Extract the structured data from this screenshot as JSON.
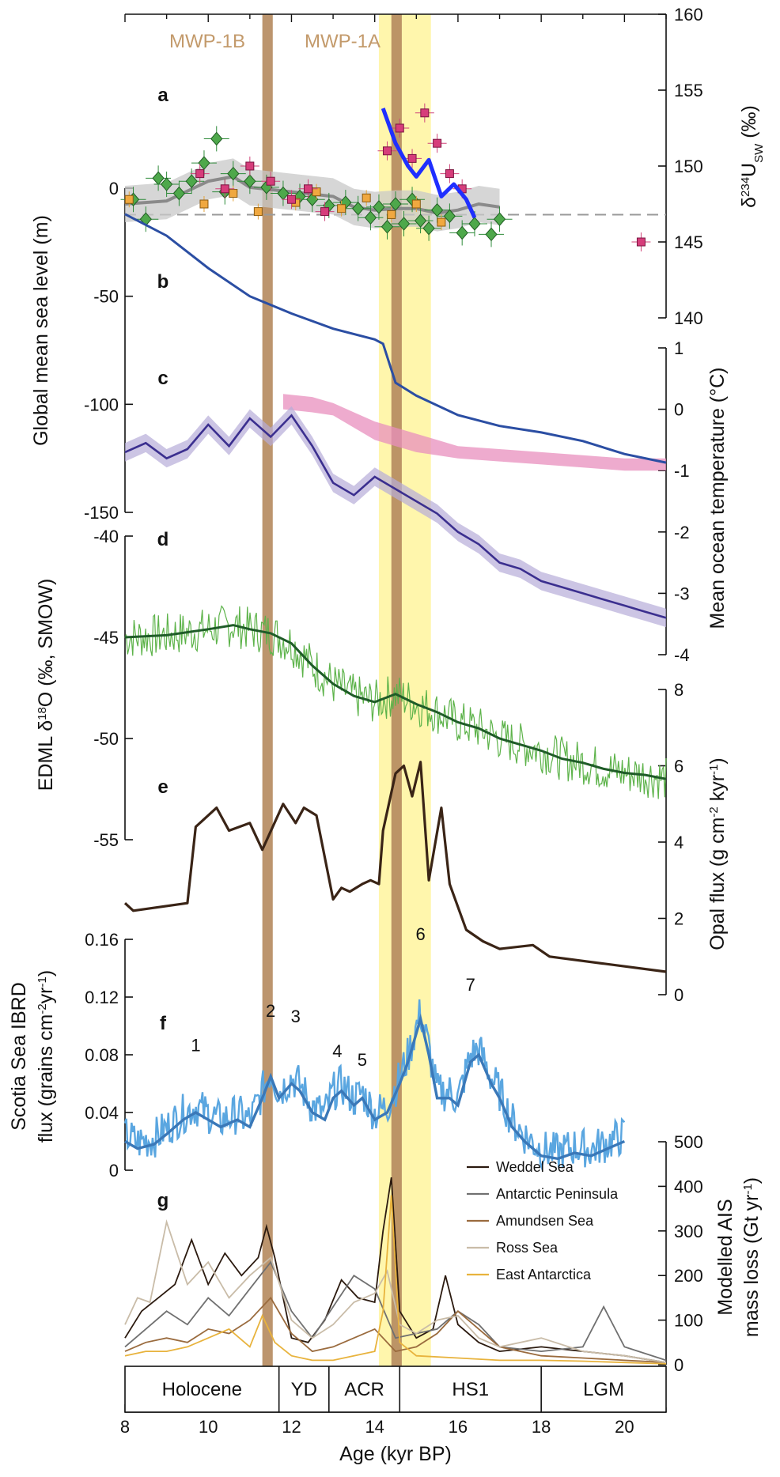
{
  "chart_data": {
    "type": "line",
    "x_axis": {
      "label": "Age (kyr BP)",
      "range": [
        8,
        21
      ],
      "ticks": [
        8,
        10,
        12,
        14,
        16,
        18,
        20
      ]
    },
    "highlights": {
      "mwp_1a_yellow": {
        "x": [
          14.1,
          15.35
        ]
      },
      "brown_bars": [
        {
          "x": [
            11.3,
            11.55
          ]
        },
        {
          "x": [
            14.4,
            14.65
          ]
        }
      ],
      "event_labels": [
        "MWP-1B",
        "MWP-1A"
      ]
    },
    "stages": [
      {
        "label": "Holocene",
        "x": [
          8,
          11.7
        ]
      },
      {
        "label": "YD",
        "x": [
          11.7,
          12.9
        ]
      },
      {
        "label": "ACR",
        "x": [
          12.9,
          14.6
        ]
      },
      {
        "label": "HS1",
        "x": [
          14.6,
          18
        ]
      },
      {
        "label": "LGM",
        "x": [
          18,
          21
        ]
      }
    ],
    "panels": {
      "a": {
        "panel_label": "a",
        "ylabel": "δ234USW (‰)",
        "ylim": [
          140,
          160
        ],
        "yticks": [
          140,
          145,
          150,
          155,
          160
        ],
        "reference_line": 146.8,
        "mean": {
          "x": [
            8,
            9,
            10,
            10.6,
            11,
            12,
            13,
            13.5,
            14,
            14.5,
            15,
            15.5,
            16,
            16.5,
            17
          ],
          "y": [
            147.5,
            147.7,
            149.0,
            149.3,
            148.6,
            148.3,
            148.0,
            147.3,
            147.1,
            147.2,
            147.2,
            146.9,
            147.1,
            147.5,
            147.3
          ]
        },
        "mean_band_halfwidth": 1.2,
        "pink_trend": {
          "x": [
            14.2,
            14.5,
            14.8,
            15.0,
            15.3,
            15.6,
            15.9,
            16.2,
            16.4
          ],
          "y": [
            153.8,
            151.5,
            150.0,
            149.3,
            150.4,
            148.0,
            148.8,
            147.8,
            146.6
          ]
        },
        "green_points": {
          "x": [
            8.2,
            8.5,
            8.8,
            9.0,
            9.3,
            9.6,
            9.9,
            10.2,
            10.4,
            10.6,
            11.0,
            11.4,
            11.8,
            12.2,
            12.5,
            12.9,
            13.3,
            13.6,
            13.9,
            14.1,
            14.3,
            14.5,
            14.7,
            14.9,
            15.1,
            15.3,
            15.5,
            15.8,
            16.1,
            16.4,
            16.8,
            17.0
          ],
          "y": [
            147.8,
            146.5,
            149.2,
            148.8,
            148.2,
            149.0,
            150.2,
            151.8,
            148.3,
            149.5,
            149.0,
            148.6,
            148.2,
            148.0,
            147.8,
            147.4,
            147.6,
            147.2,
            146.6,
            147.3,
            146.0,
            147.5,
            146.2,
            147.8,
            146.4,
            145.9,
            147.1,
            146.7,
            145.6,
            146.2,
            145.5,
            146.5
          ]
        },
        "pink_points": {
          "x": [
            9.8,
            10.4,
            11.0,
            11.5,
            12.0,
            12.4,
            12.8,
            14.3,
            14.6,
            14.9,
            15.2,
            15.5,
            15.8,
            16.1,
            20.4
          ],
          "y": [
            149.5,
            148.5,
            150.0,
            149.0,
            147.8,
            148.5,
            147.0,
            151.0,
            152.5,
            150.5,
            153.5,
            151.5,
            149.5,
            148.5,
            145.0
          ]
        },
        "orange_points": {
          "x": [
            8.1,
            9.9,
            10.6,
            11.2,
            12.1,
            12.6,
            13.2,
            13.8,
            14.4,
            15.0,
            15.6
          ],
          "y": [
            147.8,
            147.5,
            148.2,
            147.0,
            147.6,
            148.3,
            147.2,
            147.9,
            146.8,
            147.5,
            146.3
          ]
        }
      },
      "b": {
        "panel_label": "b",
        "ylabel": "Global mean sea level (m)",
        "ylim": [
          -150,
          0
        ],
        "yticks": [
          -150,
          -100,
          -50,
          0
        ],
        "x": [
          8,
          9,
          10,
          11,
          12,
          13,
          14,
          14.2,
          14.5,
          15,
          16,
          17,
          18,
          19,
          20,
          21
        ],
        "y": [
          -12,
          -22,
          -37,
          -50,
          -58,
          -65,
          -70,
          -72,
          -90,
          -96,
          -105,
          -110,
          -113,
          -117,
          -123,
          -127
        ]
      },
      "c": {
        "panel_label": "c",
        "ylabel": "Mean ocean temperature (°C)",
        "ylim": [
          -4,
          1
        ],
        "yticks": [
          -4,
          -3,
          -2,
          -1,
          0,
          1
        ],
        "x": [
          8,
          8.5,
          9,
          9.5,
          10,
          10.5,
          11,
          11.5,
          12,
          12.5,
          13,
          13.5,
          14,
          14.5,
          15,
          15.5,
          16,
          16.5,
          17,
          17.5,
          18,
          18.5,
          19,
          19.5,
          20,
          20.5,
          21
        ],
        "y": [
          -0.7,
          -0.55,
          -0.8,
          -0.65,
          -0.25,
          -0.6,
          -0.15,
          -0.45,
          -0.1,
          -0.6,
          -1.2,
          -1.4,
          -1.1,
          -1.3,
          -1.5,
          -1.7,
          -2.0,
          -2.2,
          -2.5,
          -2.6,
          -2.8,
          -2.9,
          -3.0,
          -3.1,
          -3.2,
          -3.3,
          -3.4
        ],
        "band_halfwidth": 0.15,
        "pink_band": {
          "x": [
            11.8,
            12.5,
            13.0,
            13.5,
            14.0,
            14.5,
            15.0,
            15.5,
            16.0,
            17.0,
            18.0,
            19.0,
            20.0,
            21.0
          ],
          "lo": [
            0.0,
            -0.05,
            -0.1,
            -0.3,
            -0.5,
            -0.6,
            -0.7,
            -0.75,
            -0.8,
            -0.85,
            -0.9,
            -0.95,
            -1.0,
            -1.0
          ],
          "hi": [
            0.25,
            0.2,
            0.1,
            -0.05,
            -0.2,
            -0.3,
            -0.4,
            -0.5,
            -0.6,
            -0.65,
            -0.7,
            -0.75,
            -0.8,
            -0.8
          ]
        }
      },
      "d": {
        "panel_label": "d",
        "ylabel": "EDML δ18O (‰, SMOW)",
        "ylim": [
          -55,
          -40
        ],
        "yticks": [
          -55,
          -50,
          -45,
          -40
        ],
        "x": [
          8,
          9,
          10,
          10.6,
          11,
          11.5,
          12,
          12.5,
          13,
          13.5,
          14,
          14.5,
          15,
          15.5,
          16,
          16.5,
          17,
          17.5,
          18,
          18.5,
          19,
          19.5,
          20,
          20.5,
          21
        ],
        "y": [
          -45.0,
          -44.9,
          -44.6,
          -44.4,
          -44.6,
          -44.8,
          -45.3,
          -46.4,
          -47.3,
          -47.9,
          -48.2,
          -47.8,
          -48.3,
          -48.7,
          -49.2,
          -49.5,
          -50.0,
          -50.3,
          -50.6,
          -51.0,
          -51.2,
          -51.5,
          -51.7,
          -51.8,
          -52.0
        ]
      },
      "e": {
        "panel_label": "e",
        "ylabel": "Opal flux (g cm-2 kyr-1)",
        "ylim": [
          0,
          8
        ],
        "yticks": [
          0,
          2,
          4,
          6,
          8
        ],
        "x": [
          8,
          8.2,
          9.5,
          9.7,
          10.2,
          10.5,
          11.0,
          11.3,
          11.8,
          12.1,
          12.3,
          12.6,
          13.0,
          13.2,
          13.4,
          13.7,
          13.9,
          14.1,
          14.2,
          14.5,
          14.7,
          14.9,
          15.1,
          15.3,
          15.6,
          15.8,
          16.2,
          16.6,
          17.0,
          17.8,
          18.2,
          21.0
        ],
        "y": [
          2.4,
          2.2,
          2.4,
          4.4,
          4.9,
          4.3,
          4.5,
          3.8,
          5.0,
          4.5,
          4.9,
          4.7,
          2.5,
          2.8,
          2.7,
          2.9,
          3.0,
          2.9,
          4.3,
          5.8,
          6.0,
          5.2,
          6.1,
          3.0,
          4.9,
          2.9,
          1.7,
          1.4,
          1.2,
          1.3,
          1.0,
          0.6
        ]
      },
      "f": {
        "panel_label": "f",
        "ylabel": "Scotia Sea IBRD flux (grains cm-2yr-1)",
        "ylim": [
          0,
          0.16
        ],
        "yticks": [
          0,
          0.04,
          0.08,
          0.12,
          0.16
        ],
        "peak_labels": [
          {
            "label": "1",
            "x": 9.7,
            "y": 0.078
          },
          {
            "label": "2",
            "x": 11.5,
            "y": 0.102
          },
          {
            "label": "3",
            "x": 12.1,
            "y": 0.098
          },
          {
            "label": "4",
            "x": 13.1,
            "y": 0.074
          },
          {
            "label": "5",
            "x": 13.7,
            "y": 0.068
          },
          {
            "label": "6",
            "x": 15.1,
            "y": 0.155
          },
          {
            "label": "7",
            "x": 16.3,
            "y": 0.12
          }
        ],
        "x": [
          8,
          8.3,
          8.7,
          9.0,
          9.4,
          9.7,
          10.0,
          10.3,
          10.7,
          11.0,
          11.3,
          11.5,
          11.7,
          12.0,
          12.2,
          12.5,
          12.8,
          13.0,
          13.2,
          13.5,
          13.7,
          14.0,
          14.3,
          14.6,
          14.8,
          15.0,
          15.1,
          15.3,
          15.5,
          15.8,
          16.0,
          16.3,
          16.5,
          16.8,
          17.0,
          17.3,
          17.6,
          18.0,
          18.4,
          18.8,
          19.2,
          19.6,
          20.0
        ],
        "y": [
          0.02,
          0.015,
          0.018,
          0.025,
          0.035,
          0.04,
          0.035,
          0.03,
          0.035,
          0.03,
          0.05,
          0.065,
          0.05,
          0.06,
          0.055,
          0.04,
          0.035,
          0.05,
          0.055,
          0.045,
          0.05,
          0.035,
          0.04,
          0.06,
          0.075,
          0.095,
          0.105,
          0.08,
          0.05,
          0.05,
          0.045,
          0.075,
          0.08,
          0.06,
          0.05,
          0.03,
          0.02,
          0.01,
          0.008,
          0.012,
          0.01,
          0.015,
          0.02
        ]
      },
      "g": {
        "panel_label": "g",
        "ylabel": "Modelled AIS mass loss (Gt yr-1)",
        "ylim": [
          0,
          500
        ],
        "yticks": [
          0,
          100,
          200,
          300,
          400,
          500
        ],
        "series": [
          {
            "name": "Weddel Sea",
            "color": "#2b1a0f",
            "x": [
              8,
              8.4,
              8.8,
              9.2,
              9.6,
              10.0,
              10.4,
              10.8,
              11.2,
              11.4,
              11.6,
              12.0,
              12.4,
              12.8,
              13.2,
              13.6,
              14.0,
              14.2,
              14.4,
              14.6,
              15.0,
              15.4,
              15.7,
              16.0,
              16.5,
              17.0,
              18.0,
              19.0,
              20.0,
              21.0
            ],
            "y": [
              60,
              120,
              150,
              180,
              280,
              180,
              250,
              200,
              240,
              310,
              240,
              60,
              50,
              100,
              190,
              150,
              140,
              300,
              420,
              120,
              60,
              80,
              200,
              90,
              50,
              30,
              40,
              30,
              20,
              5
            ]
          },
          {
            "name": "Antarctic Peninsula",
            "color": "#707070",
            "x": [
              8,
              8.5,
              9,
              9.5,
              10,
              10.5,
              11,
              11.5,
              12,
              12.5,
              13,
              13.5,
              14,
              14.5,
              15,
              15.5,
              16,
              16.5,
              17,
              18,
              19,
              19.5,
              20,
              21
            ],
            "y": [
              40,
              80,
              120,
              90,
              150,
              110,
              170,
              230,
              120,
              60,
              130,
              200,
              170,
              60,
              70,
              80,
              120,
              90,
              40,
              30,
              40,
              130,
              40,
              10
            ]
          },
          {
            "name": "Amundsen Sea",
            "color": "#9a6b3e",
            "x": [
              8,
              8.5,
              9,
              9.5,
              10,
              10.5,
              11,
              11.5,
              12,
              12.5,
              13,
              13.5,
              14,
              14.5,
              15,
              15.5,
              16,
              16.5,
              17,
              18,
              19,
              20,
              21
            ],
            "y": [
              30,
              50,
              60,
              50,
              80,
              70,
              100,
              150,
              70,
              30,
              40,
              60,
              80,
              30,
              40,
              70,
              120,
              80,
              40,
              20,
              15,
              10,
              5
            ]
          },
          {
            "name": "Ross Sea",
            "color": "#c9bca8",
            "x": [
              8,
              8.3,
              8.6,
              9,
              9.5,
              10,
              10.5,
              11,
              11.5,
              12,
              12.5,
              13,
              13.5,
              14,
              14.3,
              14.6,
              15,
              15.5,
              16,
              16.5,
              17,
              18,
              19,
              20,
              21
            ],
            "y": [
              90,
              150,
              140,
              320,
              180,
              230,
              150,
              200,
              240,
              100,
              60,
              90,
              140,
              160,
              210,
              90,
              70,
              100,
              110,
              60,
              40,
              60,
              30,
              20,
              5
            ]
          },
          {
            "name": "East Antarctica",
            "color": "#e8b33d",
            "x": [
              8,
              8.5,
              9,
              9.5,
              10,
              10.5,
              11,
              11.3,
              11.6,
              12,
              12.5,
              13,
              13.5,
              14,
              14.2,
              14.4,
              14.6,
              15,
              16,
              17,
              18,
              19,
              20,
              21
            ],
            "y": [
              20,
              30,
              30,
              40,
              60,
              80,
              40,
              110,
              50,
              20,
              10,
              10,
              20,
              30,
              120,
              380,
              50,
              20,
              15,
              10,
              10,
              8,
              5,
              2
            ]
          }
        ]
      }
    }
  }
}
